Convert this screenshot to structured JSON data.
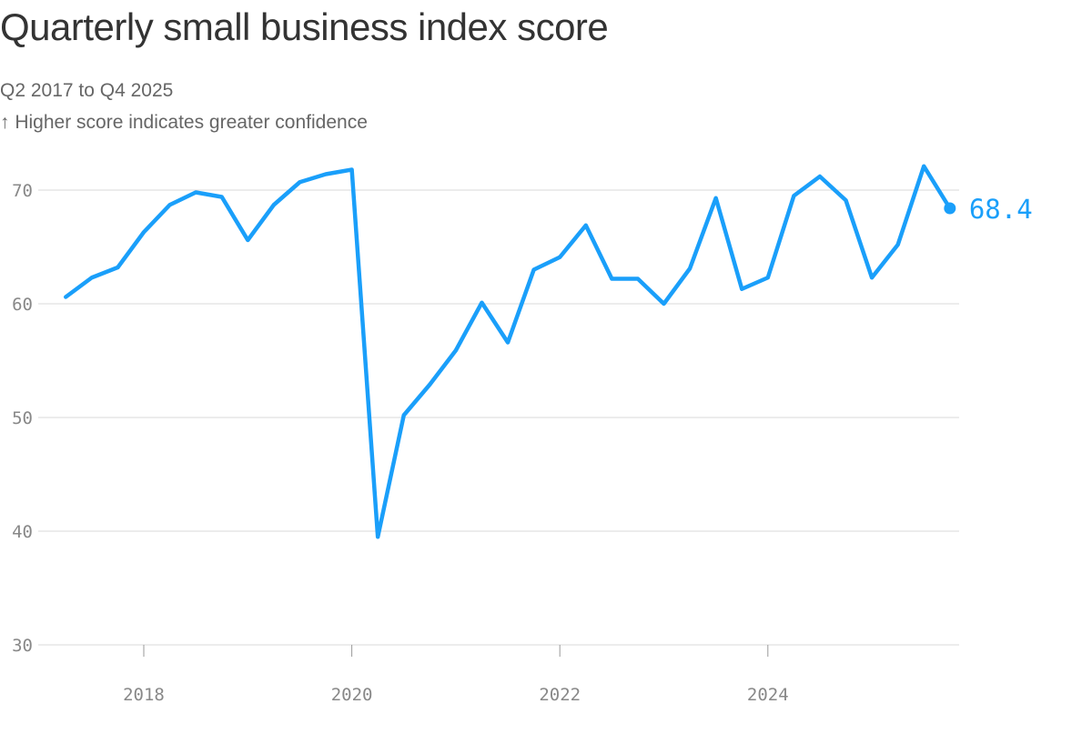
{
  "title": "Quarterly small business index score",
  "subtitle": "Q2 2017 to Q4 2025",
  "note": "↑ Higher score indicates greater confidence",
  "colors": {
    "line": "#1a9ffa",
    "grid": "#d8d8d8",
    "tick": "#888888"
  },
  "chart_data": {
    "type": "line",
    "title": "Quarterly small business index score",
    "subtitle": "Q2 2017 to Q4 2025",
    "ylabel": "",
    "xlabel": "",
    "ylim": [
      30,
      72
    ],
    "yticks": [
      30,
      40,
      50,
      60,
      70
    ],
    "xticks": [
      2018,
      2020,
      2022,
      2024
    ],
    "grid": true,
    "end_label": "68.4",
    "x": [
      "Q2 2017",
      "Q3 2017",
      "Q4 2017",
      "Q1 2018",
      "Q2 2018",
      "Q3 2018",
      "Q4 2018",
      "Q1 2019",
      "Q2 2019",
      "Q3 2019",
      "Q4 2019",
      "Q1 2020",
      "Q2 2020",
      "Q3 2020",
      "Q4 2020",
      "Q1 2021",
      "Q2 2021",
      "Q3 2021",
      "Q4 2021",
      "Q1 2022",
      "Q2 2022",
      "Q3 2022",
      "Q4 2022",
      "Q1 2023",
      "Q2 2023",
      "Q3 2023",
      "Q4 2023",
      "Q1 2024",
      "Q2 2024",
      "Q3 2024",
      "Q4 2024",
      "Q1 2025",
      "Q2 2025",
      "Q3 2025",
      "Q4 2025"
    ],
    "values": [
      60.6,
      62.3,
      63.2,
      66.3,
      68.7,
      69.8,
      69.4,
      65.6,
      68.7,
      70.7,
      71.4,
      71.8,
      39.5,
      50.2,
      52.9,
      55.9,
      60.1,
      56.6,
      63.0,
      64.1,
      66.9,
      62.2,
      62.2,
      60.0,
      63.1,
      69.3,
      61.3,
      62.3,
      69.5,
      71.2,
      69.1,
      62.3,
      65.2,
      72.1,
      68.4
    ]
  }
}
